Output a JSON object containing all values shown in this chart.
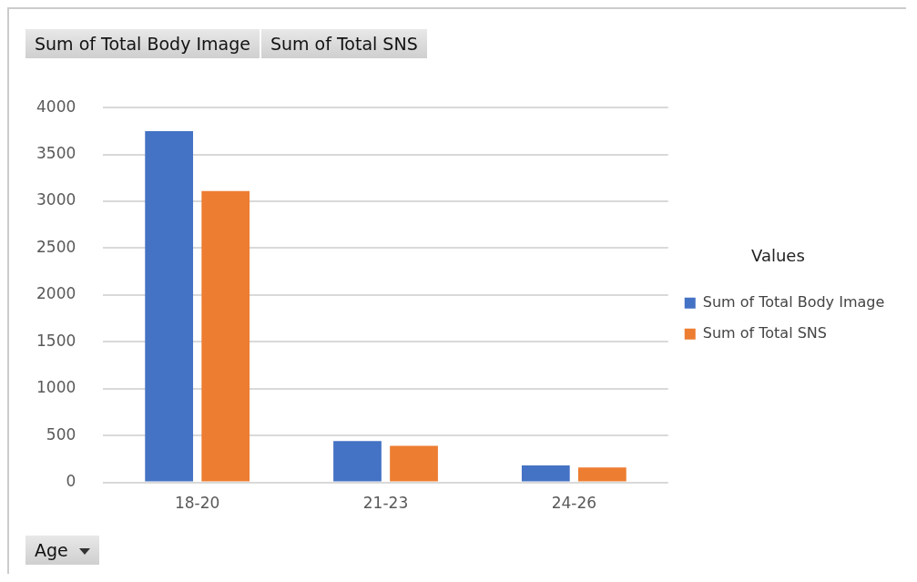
{
  "chart_data": {
    "type": "bar",
    "categories": [
      "18-20",
      "21-23",
      "24-26"
    ],
    "series": [
      {
        "name": "Sum of Total Body Image",
        "color": "#4472c4",
        "values": [
          3750,
          440,
          180
        ]
      },
      {
        "name": "Sum of Total SNS",
        "color": "#ed7d31",
        "values": [
          3110,
          390,
          160
        ]
      }
    ],
    "ylim": [
      0,
      4000
    ],
    "yticks": [
      0,
      500,
      1000,
      1500,
      2000,
      2500,
      3000,
      3500,
      4000
    ],
    "grid": "y",
    "legend": "right",
    "legend_title": "Values",
    "xlabel": "Age",
    "annotations": [
      "Sum of Total Body Image",
      "Sum of Total SNS"
    ]
  }
}
